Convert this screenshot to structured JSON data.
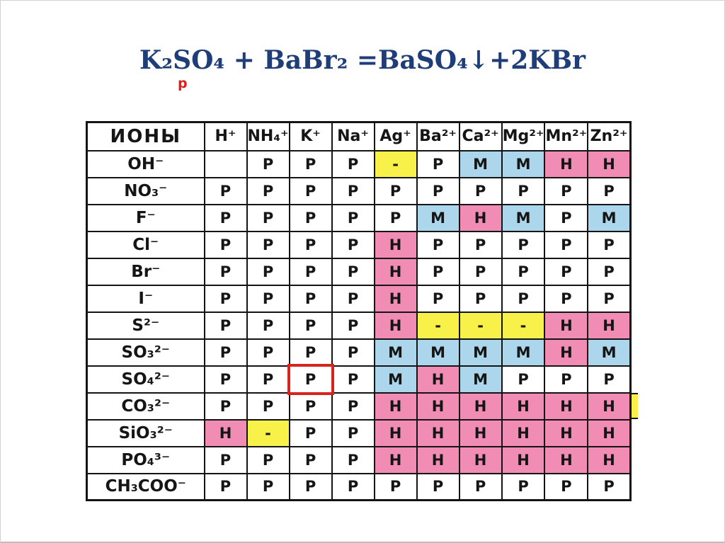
{
  "slide": {
    "title": {
      "equation": "K₂SO₄ + BaBr₂ =BaSO₄↓+2KBr",
      "annotation": "р",
      "title_color": "#1F3E79",
      "annotation_color": "#E31B1B"
    }
  },
  "table": {
    "corner_header": "ИОНЫ",
    "cation_headers": [
      "H⁺",
      "NH₄⁺",
      "K⁺",
      "Na⁺",
      "Ag⁺",
      "Ba²⁺",
      "Ca²⁺",
      "Mg²⁺",
      "Mn²⁺",
      "Zn²⁺"
    ],
    "rows": [
      {
        "anion": "OH⁻",
        "cells": [
          "",
          "Р",
          "Р",
          "Р",
          "-",
          "Р",
          "М",
          "М",
          "Н",
          "Н"
        ]
      },
      {
        "anion": "NO₃⁻",
        "cells": [
          "Р",
          "Р",
          "Р",
          "Р",
          "Р",
          "Р",
          "Р",
          "Р",
          "Р",
          "Р"
        ]
      },
      {
        "anion": "F⁻",
        "cells": [
          "Р",
          "Р",
          "Р",
          "Р",
          "Р",
          "М",
          "Н",
          "М",
          "Р",
          "М"
        ]
      },
      {
        "anion": "Cl⁻",
        "cells": [
          "Р",
          "Р",
          "Р",
          "Р",
          "Н",
          "Р",
          "Р",
          "Р",
          "Р",
          "Р"
        ]
      },
      {
        "anion": "Br⁻",
        "cells": [
          "Р",
          "Р",
          "Р",
          "Р",
          "Н",
          "Р",
          "Р",
          "Р",
          "Р",
          "Р"
        ]
      },
      {
        "anion": "I⁻",
        "cells": [
          "Р",
          "Р",
          "Р",
          "Р",
          "Н",
          "Р",
          "Р",
          "Р",
          "Р",
          "Р"
        ]
      },
      {
        "anion": "S²⁻",
        "cells": [
          "Р",
          "Р",
          "Р",
          "Р",
          "Н",
          "-",
          "-",
          "-",
          "Н",
          "Н"
        ]
      },
      {
        "anion": "SO₃²⁻",
        "cells": [
          "Р",
          "Р",
          "Р",
          "Р",
          "М",
          "М",
          "М",
          "М",
          "Н",
          "М"
        ]
      },
      {
        "anion": "SO₄²⁻",
        "cells": [
          "Р",
          "Р",
          "Р",
          "Р",
          "М",
          "Н",
          "М",
          "Р",
          "Р",
          "Р"
        ]
      },
      {
        "anion": "CO₃²⁻",
        "cells": [
          "Р",
          "Р",
          "Р",
          "Р",
          "Н",
          "Н",
          "Н",
          "Н",
          "Н",
          "Н"
        ]
      },
      {
        "anion": "SiO₃²⁻",
        "cells": [
          "Н",
          "-",
          "Р",
          "Р",
          "Н",
          "Н",
          "Н",
          "Н",
          "Н",
          "Н"
        ]
      },
      {
        "anion": "PO₄³⁻",
        "cells": [
          "Р",
          "Р",
          "Р",
          "Р",
          "Н",
          "Н",
          "Н",
          "Н",
          "Н",
          "Н"
        ]
      },
      {
        "anion": "CH₃COO⁻",
        "cells": [
          "Р",
          "Р",
          "Р",
          "Р",
          "Р",
          "Р",
          "Р",
          "Р",
          "Р",
          "Р"
        ]
      }
    ],
    "value_colors": {
      "Р": "#FFFFFF",
      "М": "#ABD6EB",
      "Н": "#F18CB5",
      "-": "#F7F14A",
      "": "#FFFFFF"
    },
    "grid_color": "#141414",
    "highlight": {
      "row": 8,
      "col": 2,
      "color": "#D6251D"
    }
  }
}
